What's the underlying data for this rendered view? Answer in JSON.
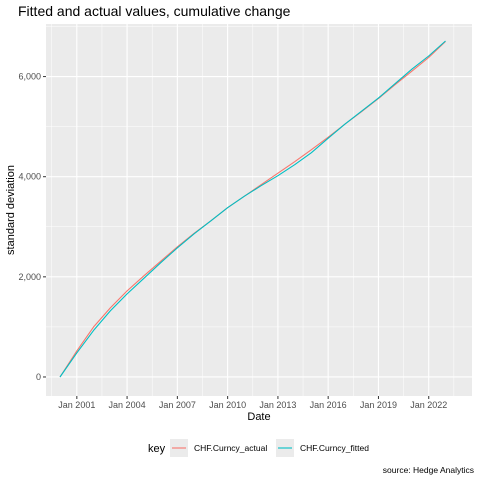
{
  "chart_data": {
    "type": "line",
    "title": "Fitted and actual values, cumulative change",
    "xlabel": "Date",
    "ylabel": "standard deviation",
    "caption": "source: Hedge Analytics",
    "legend_title": "key",
    "legend_position": "bottom",
    "grid": true,
    "xlim": [
      "1999-03-01",
      "2024-08-01"
    ],
    "ylim": [
      -380,
      7050
    ],
    "x_ticks": [
      {
        "date": "2001-01-01",
        "label": "Jan 2001"
      },
      {
        "date": "2004-01-01",
        "label": "Jan 2004"
      },
      {
        "date": "2007-01-01",
        "label": "Jan 2007"
      },
      {
        "date": "2010-01-01",
        "label": "Jan 2010"
      },
      {
        "date": "2013-01-01",
        "label": "Jan 2013"
      },
      {
        "date": "2016-01-01",
        "label": "Jan 2016"
      },
      {
        "date": "2019-01-01",
        "label": "Jan 2019"
      },
      {
        "date": "2022-01-01",
        "label": "Jan 2022"
      }
    ],
    "y_ticks": [
      {
        "value": 0,
        "label": "0"
      },
      {
        "value": 2000,
        "label": "2,000"
      },
      {
        "value": 4000,
        "label": "4,000"
      },
      {
        "value": 6000,
        "label": "6,000"
      }
    ],
    "x": [
      "2000-01-01",
      "2001-01-01",
      "2002-01-01",
      "2003-01-01",
      "2004-01-01",
      "2005-01-01",
      "2006-01-01",
      "2007-01-01",
      "2008-01-01",
      "2009-01-01",
      "2010-01-01",
      "2011-01-01",
      "2012-01-01",
      "2013-01-01",
      "2014-01-01",
      "2015-01-01",
      "2016-01-01",
      "2017-01-01",
      "2018-01-01",
      "2019-01-01",
      "2020-01-01",
      "2021-01-01",
      "2022-01-01",
      "2023-01-01"
    ],
    "series": [
      {
        "name": "CHF.Curncy_actual",
        "color": "#F8766D",
        "values": [
          0,
          520,
          1000,
          1380,
          1720,
          2020,
          2310,
          2600,
          2870,
          3120,
          3380,
          3610,
          3840,
          4070,
          4300,
          4540,
          4790,
          5050,
          5300,
          5560,
          5840,
          6110,
          6380,
          6700
        ]
      },
      {
        "name": "CHF.Curncy_fitted",
        "color": "#00BFC4",
        "values": [
          0,
          480,
          930,
          1320,
          1660,
          1970,
          2280,
          2580,
          2860,
          3120,
          3380,
          3610,
          3820,
          4020,
          4240,
          4480,
          4770,
          5050,
          5310,
          5570,
          5860,
          6150,
          6410,
          6710
        ]
      }
    ]
  }
}
